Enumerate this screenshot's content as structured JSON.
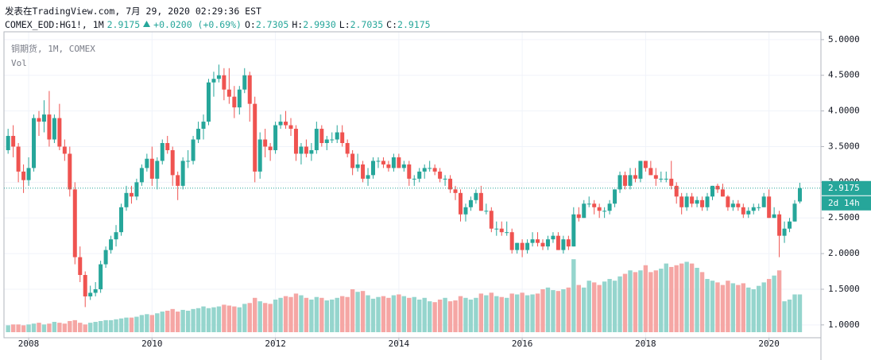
{
  "header": {
    "published": "发表在TradingView.com, 7月 29, 2020 02:29:36 EST",
    "symbol": "COMEX_EOD:HG1!, 1M",
    "last": "2.9175",
    "change": "+0.0200 (+0.69%)",
    "o_label": "O:",
    "o": "2.7305",
    "h_label": "H:",
    "h": "2.9930",
    "l_label": "L:",
    "l": "2.7035",
    "c_label": "C:",
    "c": "2.9175"
  },
  "chart_data": {
    "type": "candlestick",
    "title": "铜期货, 1M, COMEX",
    "volume_label": "Vol",
    "up_color": "#26a69a",
    "down_color": "#ef5350",
    "up_volume_color": "#95d5cd",
    "down_volume_color": "#f5a6a4",
    "xlim": [
      -0.8,
      158.1
    ],
    "xticks": [
      {
        "value": 4,
        "label": "2008"
      },
      {
        "value": 28,
        "label": "2010"
      },
      {
        "value": 52,
        "label": "2012"
      },
      {
        "value": 76,
        "label": "2014"
      },
      {
        "value": 100,
        "label": "2016"
      },
      {
        "value": 124,
        "label": "2018"
      },
      {
        "value": 148,
        "label": "2020"
      }
    ],
    "ylim": [
      0.82,
      5.11
    ],
    "yticks": [
      {
        "value": 1,
        "label": "1.0000"
      },
      {
        "value": 1.5,
        "label": "1.5000"
      },
      {
        "value": 2,
        "label": "2.0000"
      },
      {
        "value": 2.5,
        "label": "2.5000"
      },
      {
        "value": 3,
        "label": "3.0000"
      },
      {
        "value": 3.5,
        "label": "3.5000"
      },
      {
        "value": 4,
        "label": "4.0000"
      },
      {
        "value": 4.5,
        "label": "4.5000"
      },
      {
        "value": 5,
        "label": "5.0000"
      }
    ],
    "grid": true,
    "last_price": {
      "value": 2.9175,
      "label": "2.9175"
    },
    "countdown": "2d 14h",
    "candles": [
      [
        3.45,
        3.75,
        3.4,
        3.65
      ],
      [
        3.65,
        3.8,
        3.35,
        3.5
      ],
      [
        3.5,
        3.55,
        3.0,
        3.15
      ],
      [
        3.15,
        3.25,
        2.85,
        3.03
      ],
      [
        3.03,
        3.35,
        2.95,
        3.2
      ],
      [
        3.2,
        3.95,
        3.15,
        3.9
      ],
      [
        3.9,
        4.0,
        3.65,
        3.85
      ],
      [
        3.85,
        4.15,
        3.7,
        3.95
      ],
      [
        3.95,
        4.28,
        3.5,
        3.6
      ],
      [
        3.6,
        3.95,
        3.55,
        3.9
      ],
      [
        3.9,
        4.1,
        3.45,
        3.5
      ],
      [
        3.5,
        3.6,
        3.3,
        3.4
      ],
      [
        3.4,
        3.5,
        2.8,
        2.9
      ],
      [
        2.9,
        3.0,
        1.85,
        1.95
      ],
      [
        1.95,
        2.1,
        1.6,
        1.7
      ],
      [
        1.7,
        1.75,
        1.25,
        1.4
      ],
      [
        1.4,
        1.55,
        1.35,
        1.45
      ],
      [
        1.45,
        1.6,
        1.4,
        1.5
      ],
      [
        1.5,
        1.9,
        1.45,
        1.85
      ],
      [
        1.85,
        2.1,
        1.8,
        2.05
      ],
      [
        2.05,
        2.25,
        2.0,
        2.2
      ],
      [
        2.2,
        2.4,
        2.1,
        2.3
      ],
      [
        2.3,
        2.7,
        2.25,
        2.65
      ],
      [
        2.65,
        2.95,
        2.6,
        2.85
      ],
      [
        2.85,
        2.95,
        2.7,
        2.8
      ],
      [
        2.8,
        3.05,
        2.75,
        3.0
      ],
      [
        3.0,
        3.25,
        2.95,
        3.2
      ],
      [
        3.2,
        3.4,
        3.15,
        3.33
      ],
      [
        3.33,
        3.5,
        2.95,
        3.05
      ],
      [
        3.05,
        3.35,
        2.9,
        3.3
      ],
      [
        3.3,
        3.6,
        3.25,
        3.55
      ],
      [
        3.55,
        3.65,
        3.4,
        3.45
      ],
      [
        3.45,
        3.5,
        2.95,
        3.1
      ],
      [
        3.1,
        3.15,
        2.75,
        2.95
      ],
      [
        2.95,
        3.35,
        2.9,
        3.3
      ],
      [
        3.3,
        3.45,
        3.2,
        3.3
      ],
      [
        3.3,
        3.65,
        3.25,
        3.6
      ],
      [
        3.6,
        3.85,
        3.55,
        3.75
      ],
      [
        3.75,
        3.95,
        3.6,
        3.85
      ],
      [
        3.85,
        4.45,
        3.8,
        4.4
      ],
      [
        4.4,
        4.55,
        4.2,
        4.45
      ],
      [
        4.45,
        4.65,
        4.4,
        4.5
      ],
      [
        4.5,
        4.6,
        4.15,
        4.3
      ],
      [
        4.3,
        4.6,
        4.1,
        4.2
      ],
      [
        4.2,
        4.35,
        3.9,
        4.05
      ],
      [
        4.05,
        4.35,
        3.95,
        4.3
      ],
      [
        4.3,
        4.6,
        4.25,
        4.5
      ],
      [
        4.5,
        4.55,
        3.85,
        4.1
      ],
      [
        4.1,
        4.2,
        3.0,
        3.15
      ],
      [
        3.15,
        3.7,
        3.05,
        3.6
      ],
      [
        3.6,
        3.75,
        3.35,
        3.5
      ],
      [
        3.5,
        3.55,
        3.3,
        3.45
      ],
      [
        3.45,
        3.85,
        3.4,
        3.8
      ],
      [
        3.8,
        3.95,
        3.75,
        3.85
      ],
      [
        3.85,
        4.0,
        3.75,
        3.8
      ],
      [
        3.8,
        3.9,
        3.65,
        3.75
      ],
      [
        3.75,
        3.8,
        3.3,
        3.4
      ],
      [
        3.4,
        3.55,
        3.25,
        3.5
      ],
      [
        3.5,
        3.6,
        3.35,
        3.4
      ],
      [
        3.4,
        3.55,
        3.3,
        3.45
      ],
      [
        3.45,
        3.85,
        3.4,
        3.75
      ],
      [
        3.75,
        3.8,
        3.5,
        3.55
      ],
      [
        3.55,
        3.65,
        3.45,
        3.6
      ],
      [
        3.6,
        3.7,
        3.55,
        3.6
      ],
      [
        3.6,
        3.8,
        3.55,
        3.7
      ],
      [
        3.7,
        3.8,
        3.5,
        3.55
      ],
      [
        3.55,
        3.6,
        3.35,
        3.4
      ],
      [
        3.4,
        3.45,
        3.1,
        3.2
      ],
      [
        3.2,
        3.4,
        3.15,
        3.25
      ],
      [
        3.25,
        3.3,
        3.0,
        3.05
      ],
      [
        3.05,
        3.2,
        2.95,
        3.1
      ],
      [
        3.1,
        3.35,
        3.05,
        3.3
      ],
      [
        3.3,
        3.35,
        3.2,
        3.3
      ],
      [
        3.3,
        3.35,
        3.2,
        3.25
      ],
      [
        3.25,
        3.3,
        3.15,
        3.2
      ],
      [
        3.2,
        3.4,
        3.15,
        3.35
      ],
      [
        3.35,
        3.4,
        3.2,
        3.2
      ],
      [
        3.2,
        3.3,
        3.15,
        3.25
      ],
      [
        3.25,
        3.3,
        2.95,
        3.05
      ],
      [
        3.05,
        3.1,
        2.95,
        3.05
      ],
      [
        3.05,
        3.2,
        3.0,
        3.15
      ],
      [
        3.15,
        3.25,
        3.05,
        3.2
      ],
      [
        3.2,
        3.3,
        3.15,
        3.2
      ],
      [
        3.2,
        3.25,
        3.1,
        3.15
      ],
      [
        3.15,
        3.2,
        3.0,
        3.05
      ],
      [
        3.05,
        3.1,
        2.95,
        3.05
      ],
      [
        3.05,
        3.1,
        2.85,
        2.9
      ],
      [
        2.9,
        2.95,
        2.75,
        2.85
      ],
      [
        2.85,
        2.9,
        2.45,
        2.55
      ],
      [
        2.55,
        2.7,
        2.45,
        2.65
      ],
      [
        2.65,
        2.8,
        2.6,
        2.75
      ],
      [
        2.75,
        2.9,
        2.7,
        2.85
      ],
      [
        2.85,
        2.95,
        2.6,
        2.6
      ],
      [
        2.6,
        2.7,
        2.55,
        2.6
      ],
      [
        2.6,
        2.65,
        2.3,
        2.35
      ],
      [
        2.35,
        2.45,
        2.25,
        2.35
      ],
      [
        2.35,
        2.45,
        2.25,
        2.3
      ],
      [
        2.3,
        2.45,
        2.25,
        2.3
      ],
      [
        2.3,
        2.35,
        2.0,
        2.05
      ],
      [
        2.05,
        2.15,
        2.0,
        2.15
      ],
      [
        2.15,
        2.2,
        1.95,
        2.05
      ],
      [
        2.05,
        2.2,
        2.0,
        2.15
      ],
      [
        2.15,
        2.3,
        2.1,
        2.2
      ],
      [
        2.2,
        2.3,
        2.1,
        2.15
      ],
      [
        2.15,
        2.2,
        2.05,
        2.1
      ],
      [
        2.1,
        2.25,
        2.05,
        2.2
      ],
      [
        2.2,
        2.3,
        2.15,
        2.25
      ],
      [
        2.25,
        2.3,
        2.05,
        2.05
      ],
      [
        2.05,
        2.25,
        2.0,
        2.2
      ],
      [
        2.2,
        2.25,
        2.05,
        2.1
      ],
      [
        2.1,
        2.65,
        2.1,
        2.55
      ],
      [
        2.55,
        2.65,
        2.45,
        2.5
      ],
      [
        2.5,
        2.75,
        2.5,
        2.7
      ],
      [
        2.7,
        2.8,
        2.65,
        2.7
      ],
      [
        2.7,
        2.75,
        2.55,
        2.65
      ],
      [
        2.65,
        2.7,
        2.5,
        2.6
      ],
      [
        2.6,
        2.65,
        2.5,
        2.6
      ],
      [
        2.6,
        2.75,
        2.55,
        2.7
      ],
      [
        2.7,
        2.9,
        2.65,
        2.9
      ],
      [
        2.9,
        3.15,
        2.85,
        3.1
      ],
      [
        3.1,
        3.15,
        2.9,
        2.95
      ],
      [
        2.95,
        3.2,
        2.9,
        3.1
      ],
      [
        3.1,
        3.2,
        3.0,
        3.05
      ],
      [
        3.05,
        3.3,
        3.0,
        3.3
      ],
      [
        3.3,
        3.3,
        3.15,
        3.2
      ],
      [
        3.2,
        3.3,
        3.1,
        3.1
      ],
      [
        3.1,
        3.2,
        2.95,
        3.05
      ],
      [
        3.05,
        3.15,
        3.0,
        3.05
      ],
      [
        3.05,
        3.15,
        3.0,
        3.05
      ],
      [
        3.05,
        3.3,
        2.9,
        2.95
      ],
      [
        2.95,
        3.0,
        2.7,
        2.8
      ],
      [
        2.8,
        2.85,
        2.55,
        2.65
      ],
      [
        2.65,
        2.85,
        2.6,
        2.8
      ],
      [
        2.8,
        2.85,
        2.65,
        2.7
      ],
      [
        2.7,
        2.8,
        2.65,
        2.75
      ],
      [
        2.75,
        2.8,
        2.6,
        2.65
      ],
      [
        2.65,
        2.85,
        2.6,
        2.8
      ],
      [
        2.8,
        2.95,
        2.75,
        2.95
      ],
      [
        2.95,
        2.98,
        2.85,
        2.9
      ],
      [
        2.9,
        2.98,
        2.8,
        2.8
      ],
      [
        2.8,
        2.82,
        2.6,
        2.65
      ],
      [
        2.65,
        2.75,
        2.6,
        2.7
      ],
      [
        2.7,
        2.75,
        2.6,
        2.65
      ],
      [
        2.65,
        2.7,
        2.5,
        2.55
      ],
      [
        2.55,
        2.65,
        2.5,
        2.6
      ],
      [
        2.6,
        2.7,
        2.55,
        2.65
      ],
      [
        2.65,
        2.7,
        2.6,
        2.65
      ],
      [
        2.65,
        2.85,
        2.65,
        2.8
      ],
      [
        2.8,
        2.9,
        2.5,
        2.5
      ],
      [
        2.5,
        2.65,
        2.5,
        2.55
      ],
      [
        2.55,
        2.6,
        1.95,
        2.25
      ],
      [
        2.25,
        2.45,
        2.15,
        2.35
      ],
      [
        2.35,
        2.5,
        2.3,
        2.45
      ],
      [
        2.45,
        2.75,
        2.45,
        2.7
      ],
      [
        2.7305,
        2.993,
        2.7035,
        2.9175
      ]
    ],
    "volume": [
      8,
      9,
      9,
      8,
      9,
      10,
      11,
      9,
      10,
      12,
      11,
      10,
      13,
      14,
      11,
      9,
      11,
      12,
      13,
      14,
      14,
      15,
      16,
      17,
      17,
      18,
      20,
      21,
      20,
      22,
      24,
      25,
      27,
      24,
      26,
      25,
      27,
      28,
      30,
      28,
      29,
      30,
      32,
      31,
      30,
      29,
      33,
      34,
      40,
      36,
      34,
      33,
      38,
      40,
      42,
      41,
      45,
      43,
      40,
      38,
      41,
      40,
      37,
      38,
      40,
      42,
      41,
      50,
      47,
      48,
      43,
      39,
      41,
      42,
      40,
      43,
      44,
      42,
      40,
      41,
      38,
      40,
      36,
      35,
      38,
      40,
      36,
      37,
      42,
      40,
      38,
      40,
      45,
      43,
      46,
      42,
      41,
      40,
      45,
      44,
      46,
      43,
      44,
      45,
      50,
      52,
      49,
      48,
      50,
      52,
      85,
      55,
      52,
      60,
      58,
      55,
      59,
      62,
      60,
      65,
      68,
      72,
      70,
      72,
      78,
      70,
      72,
      74,
      80,
      76,
      78,
      80,
      82,
      80,
      75,
      70,
      62,
      60,
      58,
      55,
      60,
      57,
      55,
      57,
      52,
      50,
      54,
      58,
      62,
      66,
      72,
      36,
      38,
      44,
      44
    ]
  }
}
